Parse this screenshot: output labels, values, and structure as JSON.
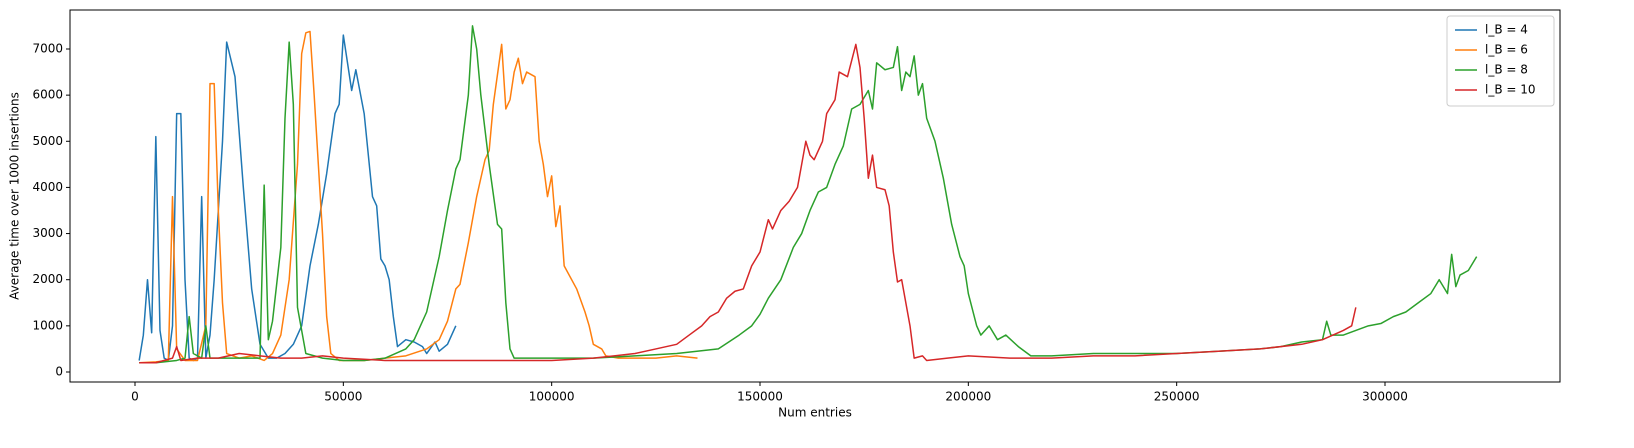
{
  "chart_data": {
    "type": "line",
    "x_label": "Num entries",
    "y_label": "Average time over 1000 insertions",
    "xlim": [
      -15600,
      342000
    ],
    "ylim": [
      -217,
      7845
    ],
    "xticks": [
      0,
      50000,
      100000,
      150000,
      200000,
      250000,
      300000
    ],
    "yticks": [
      0,
      1000,
      2000,
      3000,
      4000,
      5000,
      6000,
      7000
    ],
    "legend": "upper right",
    "series": [
      {
        "name": "l_B = 4",
        "color": "#1f77b4",
        "x": [
          1000,
          2000,
          3000,
          4000,
          5000,
          6000,
          7000,
          8000,
          9000,
          10000,
          11000,
          12000,
          13000,
          14000,
          15000,
          16000,
          17000,
          18000,
          19000,
          20000,
          21000,
          22000,
          24000,
          26000,
          28000,
          30000,
          32000,
          34000,
          36000,
          38000,
          40000,
          42000,
          44000,
          46000,
          48000,
          49000,
          50000,
          52000,
          53000,
          55000,
          57000,
          58000,
          59000,
          60000,
          61000,
          62000,
          63000,
          65000,
          67000,
          69000,
          70000,
          72000,
          73000,
          75000,
          77000
        ],
        "values": [
          250,
          800,
          2000,
          850,
          5100,
          900,
          300,
          250,
          1000,
          5600,
          5600,
          2000,
          300,
          250,
          300,
          3800,
          300,
          800,
          2000,
          3500,
          5000,
          7150,
          6400,
          4000,
          1800,
          600,
          300,
          300,
          400,
          600,
          1000,
          2300,
          3200,
          4300,
          5600,
          5800,
          7300,
          6100,
          6550,
          5600,
          3800,
          3600,
          2450,
          2300,
          2000,
          1200,
          550,
          700,
          650,
          550,
          400,
          650,
          450,
          600,
          1000
        ]
      },
      {
        "name": "l_B = 6",
        "color": "#ff7f0e",
        "x": [
          1000,
          5000,
          8000,
          9000,
          10000,
          12000,
          15000,
          17000,
          18000,
          19000,
          20000,
          21000,
          22000,
          25000,
          28000,
          31000,
          33000,
          35000,
          37000,
          39000,
          40000,
          41000,
          42000,
          43000,
          44000,
          45000,
          46000,
          47000,
          49000,
          55000,
          60000,
          65000,
          70000,
          73000,
          75000,
          77000,
          78000,
          80000,
          82000,
          84000,
          85000,
          86000,
          88000,
          89000,
          90000,
          91000,
          92000,
          93000,
          94000,
          96000,
          97000,
          98000,
          99000,
          100000,
          101000,
          102000,
          103000,
          106000,
          108000,
          109000,
          110000,
          112000,
          113000,
          116000,
          120000,
          125000,
          130000,
          135000
        ],
        "values": [
          200,
          220,
          250,
          3800,
          500,
          250,
          250,
          1000,
          6250,
          6250,
          3500,
          1500,
          400,
          300,
          350,
          250,
          400,
          800,
          2000,
          4500,
          6900,
          7350,
          7380,
          6000,
          4500,
          3000,
          1200,
          400,
          250,
          250,
          300,
          350,
          500,
          700,
          1100,
          1800,
          1900,
          2800,
          3800,
          4600,
          4800,
          5800,
          7100,
          5700,
          5900,
          6500,
          6800,
          6250,
          6500,
          6400,
          5000,
          4500,
          3800,
          4250,
          3150,
          3600,
          2300,
          1800,
          1300,
          1000,
          600,
          500,
          350,
          300,
          300,
          300,
          350,
          300
        ]
      },
      {
        "name": "l_B = 8",
        "color": "#2ca02c",
        "x": [
          1000,
          5000,
          10000,
          12000,
          13000,
          14000,
          16000,
          17000,
          18000,
          25000,
          30000,
          31000,
          32000,
          33000,
          35000,
          36000,
          37000,
          38000,
          39000,
          41000,
          45000,
          50000,
          55000,
          60000,
          65000,
          67000,
          70000,
          73000,
          75000,
          77000,
          78000,
          80000,
          81000,
          82000,
          83000,
          85000,
          87000,
          88000,
          89000,
          90000,
          91000,
          100000,
          110000,
          120000,
          130000,
          140000,
          145000,
          148000,
          150000,
          152000,
          155000,
          158000,
          160000,
          162000,
          164000,
          166000,
          168000,
          170000,
          172000,
          174000,
          176000,
          177000,
          178000,
          180000,
          182000,
          183000,
          184000,
          185000,
          186000,
          187000,
          188000,
          189000,
          190000,
          192000,
          194000,
          196000,
          198000,
          199000,
          200000,
          202000,
          203000,
          205000,
          207000,
          209000,
          212000,
          215000,
          220000,
          230000,
          240000,
          250000,
          260000,
          270000,
          275000,
          280000,
          285000,
          286000,
          287000,
          290000,
          293000,
          296000,
          299000,
          302000,
          305000,
          308000,
          311000,
          313000,
          315000,
          316000,
          317000,
          318000,
          320000,
          322000
        ],
        "values": [
          200,
          200,
          250,
          300,
          1200,
          400,
          300,
          1000,
          300,
          300,
          300,
          4050,
          700,
          1100,
          2700,
          5500,
          7150,
          5800,
          1400,
          400,
          300,
          250,
          250,
          300,
          500,
          700,
          1300,
          2500,
          3500,
          4400,
          4600,
          6000,
          7500,
          7000,
          6000,
          4500,
          3200,
          3100,
          1500,
          500,
          300,
          300,
          300,
          350,
          400,
          500,
          800,
          1000,
          1250,
          1600,
          2000,
          2700,
          3000,
          3500,
          3900,
          4000,
          4500,
          4900,
          5700,
          5800,
          6100,
          5700,
          6700,
          6550,
          6600,
          7050,
          6100,
          6500,
          6400,
          6850,
          6000,
          6250,
          5500,
          5000,
          4200,
          3200,
          2500,
          2300,
          1700,
          1000,
          800,
          1000,
          700,
          800,
          550,
          350,
          350,
          400,
          400,
          400,
          450,
          500,
          550,
          650,
          700,
          1100,
          800,
          800,
          900,
          1000,
          1050,
          1200,
          1300,
          1500,
          1700,
          2000,
          1700,
          2550,
          1850,
          2100,
          2200,
          2500
        ]
      },
      {
        "name": "l_B = 10",
        "color": "#d62728",
        "x": [
          1000,
          5000,
          9000,
          10000,
          11000,
          15000,
          20000,
          25000,
          30000,
          35000,
          40000,
          45000,
          50000,
          60000,
          70000,
          80000,
          90000,
          100000,
          110000,
          115000,
          120000,
          125000,
          130000,
          133000,
          136000,
          138000,
          140000,
          142000,
          144000,
          146000,
          148000,
          150000,
          152000,
          153000,
          155000,
          157000,
          159000,
          160000,
          161000,
          162000,
          163000,
          165000,
          166000,
          168000,
          169000,
          171000,
          173000,
          174000,
          175000,
          176000,
          177000,
          178000,
          180000,
          181000,
          182000,
          183000,
          184000,
          186000,
          187000,
          189000,
          190000,
          195000,
          200000,
          210000,
          220000,
          230000,
          240000,
          250000,
          260000,
          270000,
          280000,
          285000,
          290000,
          292000,
          293000
        ],
        "values": [
          200,
          200,
          300,
          550,
          250,
          300,
          300,
          400,
          350,
          300,
          300,
          350,
          300,
          250,
          250,
          250,
          250,
          250,
          300,
          350,
          400,
          500,
          600,
          800,
          1000,
          1200,
          1300,
          1600,
          1750,
          1800,
          2300,
          2600,
          3300,
          3100,
          3500,
          3700,
          4000,
          4500,
          5000,
          4700,
          4600,
          5000,
          5600,
          5900,
          6500,
          6400,
          7100,
          6600,
          5500,
          4200,
          4700,
          4000,
          3950,
          3600,
          2600,
          1950,
          2000,
          1000,
          300,
          350,
          250,
          300,
          350,
          300,
          300,
          350,
          350,
          400,
          450,
          500,
          600,
          700,
          900,
          1000,
          1400
        ]
      }
    ]
  }
}
